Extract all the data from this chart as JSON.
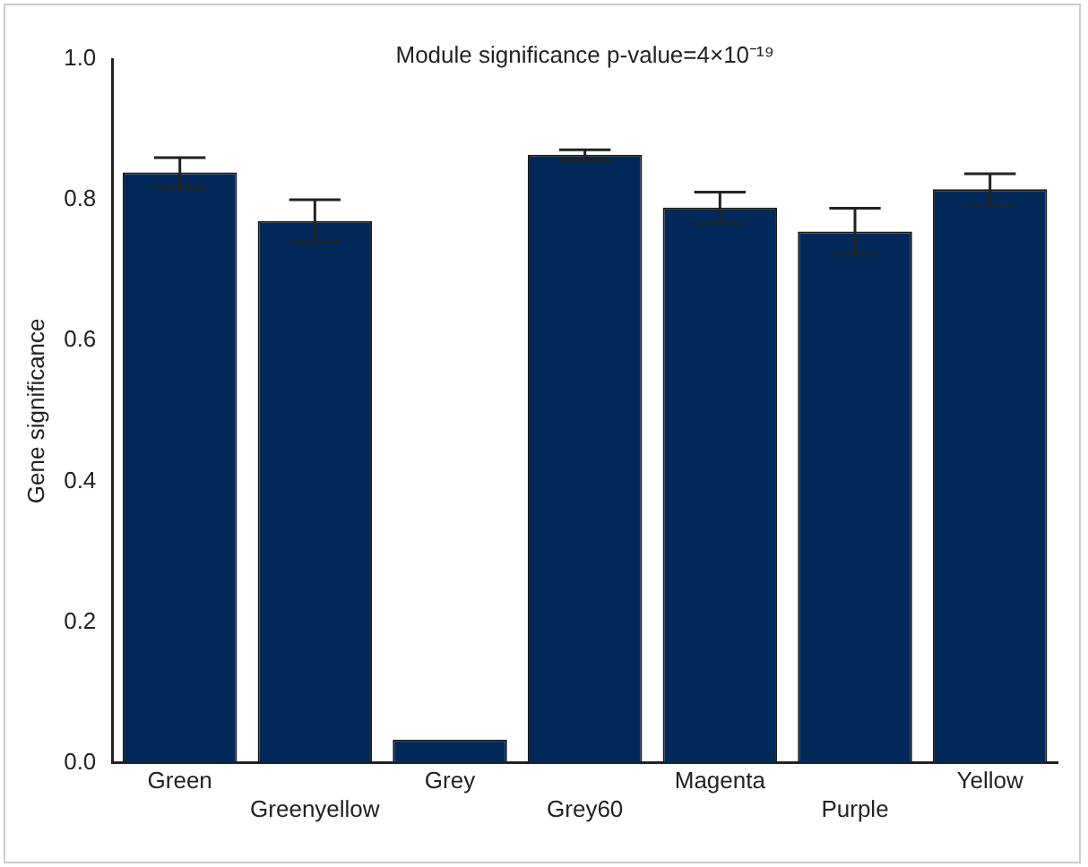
{
  "chart_data": {
    "type": "bar",
    "title": "Module significance p-value=4×10⁻¹⁹",
    "ylabel": "Gene significance",
    "categories": [
      "Green",
      "Greenyellow",
      "Grey",
      "Grey60",
      "Magenta",
      "Purple",
      "Yellow"
    ],
    "values": [
      0.839,
      0.77,
      0.033,
      0.864,
      0.789,
      0.755,
      0.815
    ],
    "errors": [
      0.021,
      0.03,
      null,
      0.007,
      0.022,
      0.033,
      0.022
    ],
    "color": "#00295a",
    "ylim": [
      0,
      1.0
    ],
    "yticks": [
      {
        "value": 0,
        "label": "0.0"
      },
      {
        "value": 0.2,
        "label": "0.2"
      },
      {
        "value": 0.4,
        "label": "0.4"
      },
      {
        "value": 0.6,
        "label": "0.6"
      },
      {
        "value": 0.8,
        "label": "0.8"
      },
      {
        "value": 1.0,
        "label": "1.0"
      }
    ],
    "grid": false,
    "legend": false
  }
}
